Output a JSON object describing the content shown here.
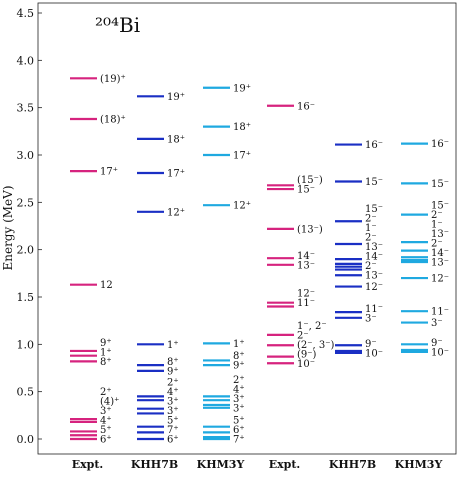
{
  "chart_data": {
    "type": "level-scheme",
    "title": "²⁰⁴Bi",
    "ylabel": "Energy (MeV)",
    "ylim": [
      -0.2,
      4.6
    ],
    "yticks": [
      "0.0",
      "0.5",
      "1.0",
      "1.5",
      "2.0",
      "2.5",
      "3.0",
      "3.5",
      "4.0",
      "4.5"
    ],
    "grid": false,
    "colors": {
      "expt": "#d6237e",
      "khh7b": "#1a2fc4",
      "khm3y": "#1fa9e0",
      "frame": "#222222"
    },
    "columns": [
      {
        "name": "Expt.",
        "parity": "+",
        "color": "expt",
        "levels": [
          {
            "e": 0.0,
            "label": "6⁺"
          },
          {
            "e": 0.04,
            "label": "5⁺"
          },
          {
            "e": 0.08,
            "label": "4⁺"
          },
          {
            "e": 0.18,
            "label": "3⁺"
          },
          {
            "e": 0.21,
            "label": ""
          },
          {
            "e": 0.82,
            "label": "8⁺"
          },
          {
            "e": 0.88,
            "label": "1⁺"
          },
          {
            "e": 0.93,
            "label": "9⁺"
          },
          {
            "e": 1.63,
            "label": "12"
          },
          {
            "e": 2.83,
            "label": "17⁺"
          },
          {
            "e": 3.38,
            "label": "(18)⁺"
          },
          {
            "e": 3.81,
            "label": "(19)⁺"
          }
        ],
        "extra_labels": [
          {
            "e": 0.36,
            "label": "(4)⁺"
          },
          {
            "e": 0.46,
            "label": "2⁺"
          }
        ]
      },
      {
        "name": "KHH7B",
        "parity": "+",
        "color": "khh7b",
        "levels": [
          {
            "e": 0.0,
            "label": "6⁺"
          },
          {
            "e": 0.07,
            "label": "7⁺"
          },
          {
            "e": 0.13,
            "label": "5⁺"
          },
          {
            "e": 0.27,
            "label": "3⁺"
          },
          {
            "e": 0.32,
            "label": "3⁺"
          },
          {
            "e": 0.41,
            "label": "4⁺"
          },
          {
            "e": 0.45,
            "label": "2⁺"
          },
          {
            "e": 0.72,
            "label": "9⁺"
          },
          {
            "e": 0.78,
            "label": "8⁺"
          },
          {
            "e": 1.0,
            "label": "1⁺"
          },
          {
            "e": 2.4,
            "label": "12⁺"
          },
          {
            "e": 2.81,
            "label": "17⁺"
          },
          {
            "e": 3.17,
            "label": "18⁺"
          },
          {
            "e": 3.62,
            "label": "19⁺"
          }
        ]
      },
      {
        "name": "KHM3Y",
        "parity": "+",
        "color": "khm3y",
        "levels": [
          {
            "e": 0.0,
            "label": "7⁺"
          },
          {
            "e": 0.02,
            "label": ""
          },
          {
            "e": 0.07,
            "label": "6⁺"
          },
          {
            "e": 0.13,
            "label": "5⁺"
          },
          {
            "e": 0.33,
            "label": "3⁺"
          },
          {
            "e": 0.36,
            "label": "3⁺"
          },
          {
            "e": 0.41,
            "label": "4⁺"
          },
          {
            "e": 0.45,
            "label": "2⁺"
          },
          {
            "e": 0.78,
            "label": "9⁺"
          },
          {
            "e": 0.83,
            "label": "8⁺"
          },
          {
            "e": 1.01,
            "label": "1⁺"
          },
          {
            "e": 2.47,
            "label": "12⁺"
          },
          {
            "e": 3.0,
            "label": "17⁺"
          },
          {
            "e": 3.3,
            "label": "18⁺"
          },
          {
            "e": 3.71,
            "label": "19⁺"
          }
        ]
      },
      {
        "name": "Expt.",
        "parity": "-",
        "color": "expt",
        "levels": [
          {
            "e": 0.8,
            "label": "10⁻"
          },
          {
            "e": 0.87,
            "label": "(9⁻)"
          },
          {
            "e": 0.99,
            "label": "(2⁻, 3⁻)"
          },
          {
            "e": 1.1,
            "label": "2⁻"
          },
          {
            "e": 1.4,
            "label": ""
          },
          {
            "e": 1.44,
            "label": "11⁻"
          },
          {
            "e": 1.84,
            "label": "13⁻"
          },
          {
            "e": 1.91,
            "label": "14⁻"
          },
          {
            "e": 2.22,
            "label": "(13⁻)"
          },
          {
            "e": 2.64,
            "label": "15⁻"
          },
          {
            "e": 2.68,
            "label": "(15⁻)"
          },
          {
            "e": 3.52,
            "label": "16⁻"
          }
        ],
        "extra_labels": [
          {
            "e": 1.2,
            "label": "1⁻, 2⁻"
          },
          {
            "e": 1.5,
            "label": "12⁻"
          }
        ]
      },
      {
        "name": "KHH7B",
        "parity": "-",
        "color": "khh7b",
        "levels": [
          {
            "e": 0.91,
            "label": "10⁻"
          },
          {
            "e": 0.93,
            "label": ""
          },
          {
            "e": 0.99,
            "label": "9⁻"
          },
          {
            "e": 1.28,
            "label": "3⁻"
          },
          {
            "e": 1.34,
            "label": "11⁻"
          },
          {
            "e": 1.61,
            "label": "12⁻"
          },
          {
            "e": 1.73,
            "label": "13⁻"
          },
          {
            "e": 1.79,
            "label": "2⁻"
          },
          {
            "e": 1.82,
            "label": ""
          },
          {
            "e": 1.85,
            "label": "14⁻"
          },
          {
            "e": 1.9,
            "label": "13⁻"
          },
          {
            "e": 2.06,
            "label": "2⁻"
          },
          {
            "e": 2.3,
            "label": "15⁻"
          },
          {
            "e": 2.72,
            "label": "15⁻"
          },
          {
            "e": 3.11,
            "label": "16⁻"
          }
        ],
        "extra_labels": [
          {
            "e": 2.14,
            "label": "1⁻"
          },
          {
            "e": 2.22,
            "label": "2⁻"
          }
        ]
      },
      {
        "name": "KHM3Y",
        "parity": "-",
        "color": "khm3y",
        "levels": [
          {
            "e": 0.92,
            "label": "10⁻"
          },
          {
            "e": 0.94,
            "label": ""
          },
          {
            "e": 1.0,
            "label": "9⁻"
          },
          {
            "e": 1.23,
            "label": "3⁻"
          },
          {
            "e": 1.35,
            "label": "11⁻"
          },
          {
            "e": 1.7,
            "label": "12⁻"
          },
          {
            "e": 1.87,
            "label": "13⁻"
          },
          {
            "e": 1.89,
            "label": ""
          },
          {
            "e": 1.92,
            "label": "14⁻"
          },
          {
            "e": 1.99,
            "label": "2⁻"
          },
          {
            "e": 2.08,
            "label": "13⁻"
          },
          {
            "e": 2.37,
            "label": "15⁻"
          },
          {
            "e": 2.7,
            "label": "15⁻"
          },
          {
            "e": 3.12,
            "label": "16⁻"
          }
        ],
        "extra_labels": [
          {
            "e": 2.16,
            "label": "1⁻"
          },
          {
            "e": 2.25,
            "label": "2⁻"
          }
        ]
      }
    ]
  }
}
